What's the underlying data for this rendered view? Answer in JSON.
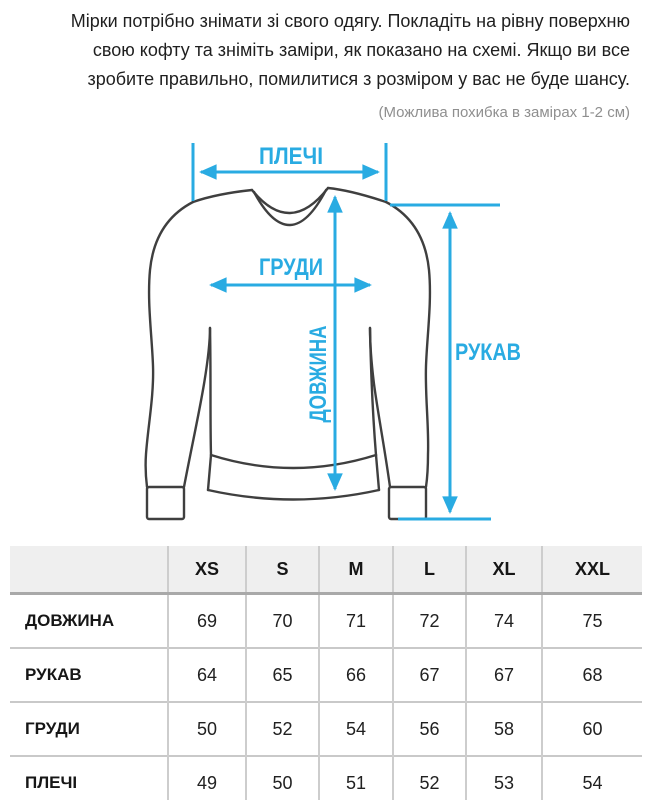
{
  "intro": {
    "lines": [
      "Мірки потрібно знімати зі свого одягу. Покладіть на рівну поверхню",
      "свою кофту та зніміть заміри, як показано на схемі. Якщо ви все",
      "зробите правильно, помилитися з розміром у вас не буде шансу."
    ],
    "note": "(Можлива похибка в замірах 1-2 см)"
  },
  "diagram": {
    "labels": {
      "shoulders": "ПЛЕЧІ",
      "chest": "ГРУДИ",
      "length": "ДОВЖИНА",
      "sleeve": "РУКАВ"
    },
    "accent_color": "#29ABE2",
    "outline_color": "#3F3F3F"
  },
  "table": {
    "header_bg_color": "#EFEFEF",
    "columns": [
      "XS",
      "S",
      "M",
      "L",
      "XL",
      "XXL"
    ],
    "rows": [
      {
        "label": "ДОВЖИНА",
        "values": [
          69,
          70,
          71,
          72,
          74,
          75
        ]
      },
      {
        "label": "РУКАВ",
        "values": [
          64,
          65,
          66,
          67,
          67,
          68
        ]
      },
      {
        "label": "ГРУДИ",
        "values": [
          50,
          52,
          54,
          56,
          58,
          60
        ]
      },
      {
        "label": "ПЛЕЧІ",
        "values": [
          49,
          50,
          51,
          52,
          53,
          54
        ]
      }
    ]
  }
}
